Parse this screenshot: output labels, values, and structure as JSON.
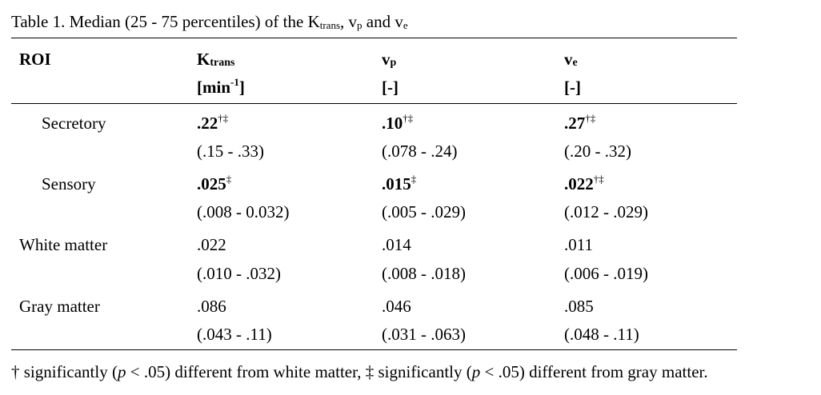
{
  "caption": {
    "prefix": "Table 1. Median (25 - 75 percentiles) of the K",
    "k_sub": "trans",
    "comma_v": ", v",
    "vp_sub": "p",
    "and_v": " and v",
    "ve_sub": "e"
  },
  "header": {
    "roi": "ROI",
    "ktrans": {
      "main": "K",
      "sub": "trans",
      "unit_pre": "[min",
      "unit_exp": "-1",
      "unit_post": "]"
    },
    "vp": {
      "main": "v",
      "sub": "p",
      "unit": "[-]"
    },
    "ve": {
      "main": "v",
      "sub": "e",
      "unit": "[-]"
    }
  },
  "rows": [
    {
      "roi": "Secretory",
      "ktrans": {
        "median": ".22",
        "marks": "†‡",
        "range": "(.15 - .33)"
      },
      "vp": {
        "median": ".10",
        "marks": "†‡",
        "range": "(.078 - .24)"
      },
      "ve": {
        "median": ".27",
        "marks": "†‡",
        "range": "(.20 - .32)"
      }
    },
    {
      "roi": "Sensory",
      "ktrans": {
        "median": ".025",
        "marks": "‡",
        "range": "(.008 - 0.032)"
      },
      "vp": {
        "median": ".015",
        "marks": "‡",
        "range": "(.005 - .029)"
      },
      "ve": {
        "median": ".022",
        "marks": "†‡",
        "range": "(.012 - .029)"
      }
    },
    {
      "roi": "White matter",
      "ktrans": {
        "median": ".022",
        "range": "(.010 - .032)"
      },
      "vp": {
        "median": ".014",
        "range": "(.008 - .018)"
      },
      "ve": {
        "median": ".011",
        "range": "(.006 - .019)"
      }
    },
    {
      "roi": "Gray matter",
      "ktrans": {
        "median": ".086",
        "range": "(.043 - .11)"
      },
      "vp": {
        "median": ".046",
        "range": "(.031 - .063)"
      },
      "ve": {
        "median": ".085",
        "range": "(.048 - .11)"
      }
    }
  ],
  "footnote": {
    "part1": "† significantly (",
    "p1": "p",
    "part2": " < .05) different from white matter, ‡ significantly (",
    "p2": "p",
    "part3": " < .05) different from gray matter."
  }
}
